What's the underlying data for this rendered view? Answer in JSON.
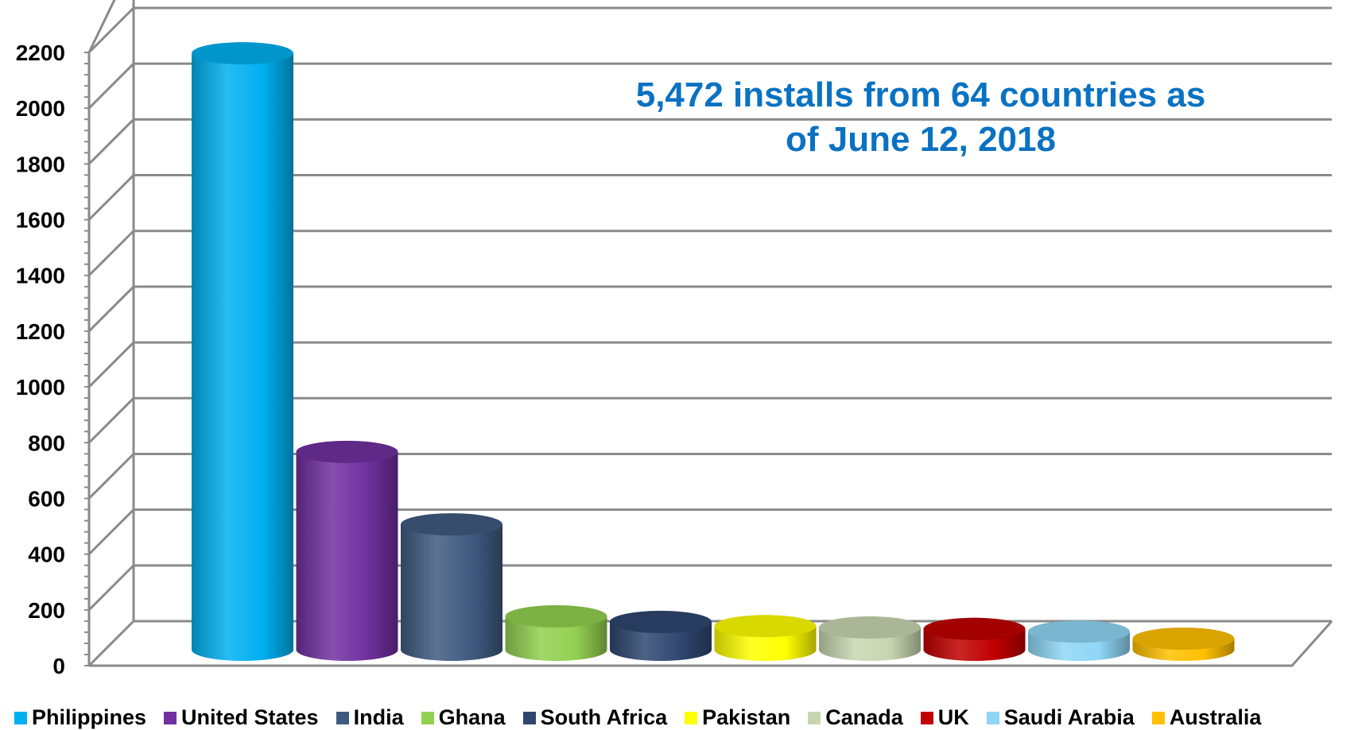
{
  "chart_data": {
    "type": "bar",
    "title": "",
    "xlabel": "",
    "ylabel": "",
    "annotation_lines": [
      "5,472 installs from 64 countries as",
      "of June 12, 2018"
    ],
    "categories": [
      "Philippines",
      "United States",
      "India",
      "Ghana",
      "South Africa",
      "Pakistan",
      "Canada",
      "UK",
      "Saudi Arabia",
      "Australia"
    ],
    "values": [
      2140,
      710,
      450,
      120,
      100,
      85,
      80,
      75,
      65,
      40
    ],
    "colors": [
      "#00b0f0",
      "#7030a0",
      "#3f5a80",
      "#92d050",
      "#2f4670",
      "#ffff00",
      "#c8d6b0",
      "#c00000",
      "#8fd6f5",
      "#ffc000"
    ],
    "yticks": [
      "0",
      "200",
      "400",
      "600",
      "800",
      "1000",
      "1200",
      "1400",
      "1600",
      "1800",
      "2000",
      "2200"
    ],
    "ylim": [
      0,
      2200
    ],
    "grid": true,
    "legend_position": "bottom",
    "style": "3d-cylinder"
  }
}
